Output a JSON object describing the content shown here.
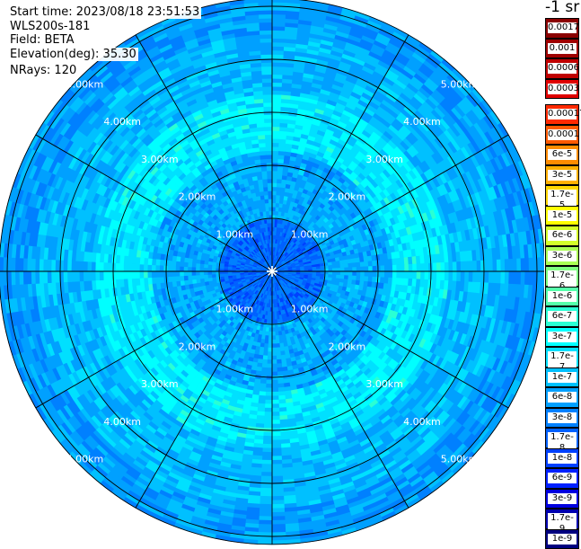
{
  "info": {
    "start_time": "Start time: 2023/08/18 23:51:53",
    "instrument": "WLS200s-181",
    "field": "Field: BETA",
    "elevation": "Elevation(deg): 35.30",
    "nrays": "NRays: 120"
  },
  "colorbar": {
    "unit_title": "-1 sr",
    "top_levels": [
      {
        "label": "0.0017",
        "color": "#8b0000"
      },
      {
        "label": "0.001",
        "color": "#a00000"
      },
      {
        "label": "0.0006",
        "color": "#c00000"
      },
      {
        "label": "0.0003",
        "color": "#e00000"
      }
    ],
    "levels": [
      {
        "label": "0.00017",
        "color": "#ff2a00"
      },
      {
        "label": "0.0001",
        "color": "#ff5a00"
      },
      {
        "label": "6e-5",
        "color": "#ff8c00"
      },
      {
        "label": "3e-5",
        "color": "#ffb000"
      },
      {
        "label": "1.7e-5",
        "color": "#ffd700"
      },
      {
        "label": "1e-5",
        "color": "#ffff00"
      },
      {
        "label": "6e-6",
        "color": "#d4ff2a"
      },
      {
        "label": "3e-6",
        "color": "#aaff55"
      },
      {
        "label": "1.7e-6",
        "color": "#7fff80"
      },
      {
        "label": "1e-6",
        "color": "#55ffaa"
      },
      {
        "label": "6e-7",
        "color": "#2affd4"
      },
      {
        "label": "3e-7",
        "color": "#00ffff"
      },
      {
        "label": "1.7e-7",
        "color": "#00e0ff"
      },
      {
        "label": "1e-7",
        "color": "#00c0ff"
      },
      {
        "label": "6e-8",
        "color": "#00a0ff"
      },
      {
        "label": "3e-8",
        "color": "#0080ff"
      },
      {
        "label": "1.7e-8",
        "color": "#0060ff"
      },
      {
        "label": "1e-8",
        "color": "#0040ff"
      },
      {
        "label": "6e-9",
        "color": "#0020ff"
      },
      {
        "label": "3e-9",
        "color": "#0000e0"
      },
      {
        "label": "1.7e-9",
        "color": "#0000b0"
      },
      {
        "label": "1e-9",
        "color": "#000080"
      }
    ]
  },
  "chart_data": {
    "type": "heatmap",
    "projection": "polar (PPI scan)",
    "field": "BETA",
    "range_rings_km": [
      1,
      2,
      3,
      4,
      5
    ],
    "ring_labels": [
      "1.00km",
      "2.00km",
      "3.00km",
      "4.00km",
      "5.00km"
    ],
    "radial_spokes": 12,
    "nrays": 120,
    "elevation_deg": 35.3,
    "value_description_by_range_km": [
      {
        "range": [
          0,
          1
        ],
        "beta": 3e-08
      },
      {
        "range": [
          1,
          2.3
        ],
        "beta": 6e-08
      },
      {
        "range": [
          2.3,
          3.3
        ],
        "beta": 1.7e-07
      },
      {
        "range": [
          3.3,
          4.5
        ],
        "beta": 1e-07
      },
      {
        "range": [
          4.5,
          5.1
        ],
        "beta": 6e-08
      },
      {
        "range": [
          5.1,
          5.3
        ],
        "beta": 1e-07
      }
    ]
  }
}
